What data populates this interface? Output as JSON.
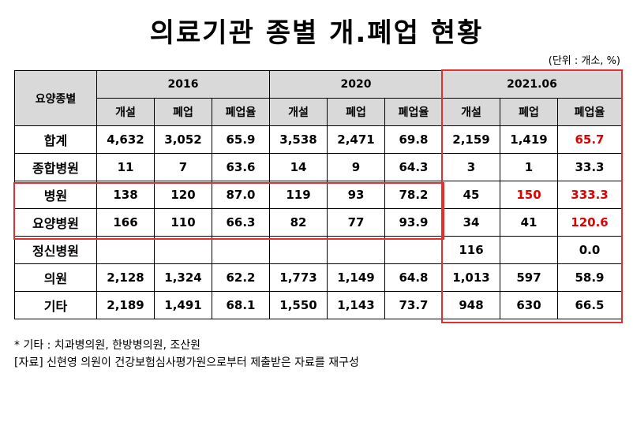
{
  "title": "의료기관 종별 개.폐업 현황",
  "unit": "(단위 : 개소, %)",
  "table": {
    "corner": "요양종별",
    "groups": [
      "2016",
      "2020",
      "2021.06"
    ],
    "subheaders": [
      "개설",
      "폐업",
      "폐업율",
      "개설",
      "폐업",
      "폐업율",
      "개설",
      "폐업",
      "폐업율"
    ],
    "rows": [
      {
        "label": "합계",
        "cells": [
          "4,632",
          "3,052",
          "65.9",
          "3,538",
          "2,471",
          "69.8",
          "2,159",
          "1,419",
          "65.7"
        ]
      },
      {
        "label": "종합병원",
        "cells": [
          "11",
          "7",
          "63.6",
          "14",
          "9",
          "64.3",
          "3",
          "1",
          "33.3"
        ]
      },
      {
        "label": "병원",
        "cells": [
          "138",
          "120",
          "87.0",
          "119",
          "93",
          "78.2",
          "45",
          "150",
          "333.3"
        ]
      },
      {
        "label": "요양병원",
        "cells": [
          "166",
          "110",
          "66.3",
          "82",
          "77",
          "93.9",
          "34",
          "41",
          "120.6"
        ]
      },
      {
        "label": "정신병원",
        "cells": [
          null,
          null,
          null,
          null,
          null,
          null,
          "116",
          null,
          "0.0"
        ]
      },
      {
        "label": "의원",
        "cells": [
          "2,128",
          "1,324",
          "62.2",
          "1,773",
          "1,149",
          "64.8",
          "1,013",
          "597",
          "58.9"
        ]
      },
      {
        "label": "기타",
        "cells": [
          "2,189",
          "1,491",
          "68.1",
          "1,550",
          "1,143",
          "73.7",
          "948",
          "630",
          "66.5"
        ]
      }
    ]
  },
  "notes": [
    "* 기타 : 치과병의원, 한방병의원, 조산원",
    "[자료] 신현영 의원이 건강보험심사평가원으로부터 제출받은 자료를 재구성"
  ]
}
